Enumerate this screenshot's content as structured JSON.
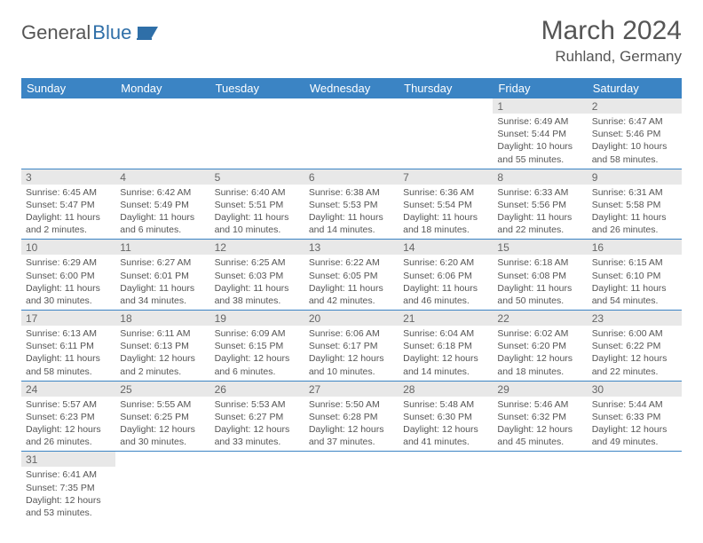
{
  "logo": {
    "part1": "General",
    "part2": "Blue"
  },
  "title": "March 2024",
  "location": "Ruhland, Germany",
  "colors": {
    "header_bg": "#3b84c4",
    "header_fg": "#ffffff",
    "daynum_bg": "#e8e8e8",
    "border": "#3b84c4",
    "text": "#555555"
  },
  "weekdays": [
    "Sunday",
    "Monday",
    "Tuesday",
    "Wednesday",
    "Thursday",
    "Friday",
    "Saturday"
  ],
  "weeks": [
    [
      null,
      null,
      null,
      null,
      null,
      {
        "n": "1",
        "sr": "6:49 AM",
        "ss": "5:44 PM",
        "dl": "10 hours and 55 minutes."
      },
      {
        "n": "2",
        "sr": "6:47 AM",
        "ss": "5:46 PM",
        "dl": "10 hours and 58 minutes."
      }
    ],
    [
      {
        "n": "3",
        "sr": "6:45 AM",
        "ss": "5:47 PM",
        "dl": "11 hours and 2 minutes."
      },
      {
        "n": "4",
        "sr": "6:42 AM",
        "ss": "5:49 PM",
        "dl": "11 hours and 6 minutes."
      },
      {
        "n": "5",
        "sr": "6:40 AM",
        "ss": "5:51 PM",
        "dl": "11 hours and 10 minutes."
      },
      {
        "n": "6",
        "sr": "6:38 AM",
        "ss": "5:53 PM",
        "dl": "11 hours and 14 minutes."
      },
      {
        "n": "7",
        "sr": "6:36 AM",
        "ss": "5:54 PM",
        "dl": "11 hours and 18 minutes."
      },
      {
        "n": "8",
        "sr": "6:33 AM",
        "ss": "5:56 PM",
        "dl": "11 hours and 22 minutes."
      },
      {
        "n": "9",
        "sr": "6:31 AM",
        "ss": "5:58 PM",
        "dl": "11 hours and 26 minutes."
      }
    ],
    [
      {
        "n": "10",
        "sr": "6:29 AM",
        "ss": "6:00 PM",
        "dl": "11 hours and 30 minutes."
      },
      {
        "n": "11",
        "sr": "6:27 AM",
        "ss": "6:01 PM",
        "dl": "11 hours and 34 minutes."
      },
      {
        "n": "12",
        "sr": "6:25 AM",
        "ss": "6:03 PM",
        "dl": "11 hours and 38 minutes."
      },
      {
        "n": "13",
        "sr": "6:22 AM",
        "ss": "6:05 PM",
        "dl": "11 hours and 42 minutes."
      },
      {
        "n": "14",
        "sr": "6:20 AM",
        "ss": "6:06 PM",
        "dl": "11 hours and 46 minutes."
      },
      {
        "n": "15",
        "sr": "6:18 AM",
        "ss": "6:08 PM",
        "dl": "11 hours and 50 minutes."
      },
      {
        "n": "16",
        "sr": "6:15 AM",
        "ss": "6:10 PM",
        "dl": "11 hours and 54 minutes."
      }
    ],
    [
      {
        "n": "17",
        "sr": "6:13 AM",
        "ss": "6:11 PM",
        "dl": "11 hours and 58 minutes."
      },
      {
        "n": "18",
        "sr": "6:11 AM",
        "ss": "6:13 PM",
        "dl": "12 hours and 2 minutes."
      },
      {
        "n": "19",
        "sr": "6:09 AM",
        "ss": "6:15 PM",
        "dl": "12 hours and 6 minutes."
      },
      {
        "n": "20",
        "sr": "6:06 AM",
        "ss": "6:17 PM",
        "dl": "12 hours and 10 minutes."
      },
      {
        "n": "21",
        "sr": "6:04 AM",
        "ss": "6:18 PM",
        "dl": "12 hours and 14 minutes."
      },
      {
        "n": "22",
        "sr": "6:02 AM",
        "ss": "6:20 PM",
        "dl": "12 hours and 18 minutes."
      },
      {
        "n": "23",
        "sr": "6:00 AM",
        "ss": "6:22 PM",
        "dl": "12 hours and 22 minutes."
      }
    ],
    [
      {
        "n": "24",
        "sr": "5:57 AM",
        "ss": "6:23 PM",
        "dl": "12 hours and 26 minutes."
      },
      {
        "n": "25",
        "sr": "5:55 AM",
        "ss": "6:25 PM",
        "dl": "12 hours and 30 minutes."
      },
      {
        "n": "26",
        "sr": "5:53 AM",
        "ss": "6:27 PM",
        "dl": "12 hours and 33 minutes."
      },
      {
        "n": "27",
        "sr": "5:50 AM",
        "ss": "6:28 PM",
        "dl": "12 hours and 37 minutes."
      },
      {
        "n": "28",
        "sr": "5:48 AM",
        "ss": "6:30 PM",
        "dl": "12 hours and 41 minutes."
      },
      {
        "n": "29",
        "sr": "5:46 AM",
        "ss": "6:32 PM",
        "dl": "12 hours and 45 minutes."
      },
      {
        "n": "30",
        "sr": "5:44 AM",
        "ss": "6:33 PM",
        "dl": "12 hours and 49 minutes."
      }
    ],
    [
      {
        "n": "31",
        "sr": "6:41 AM",
        "ss": "7:35 PM",
        "dl": "12 hours and 53 minutes."
      },
      null,
      null,
      null,
      null,
      null,
      null
    ]
  ],
  "labels": {
    "sunrise": "Sunrise:",
    "sunset": "Sunset:",
    "daylight": "Daylight:"
  }
}
